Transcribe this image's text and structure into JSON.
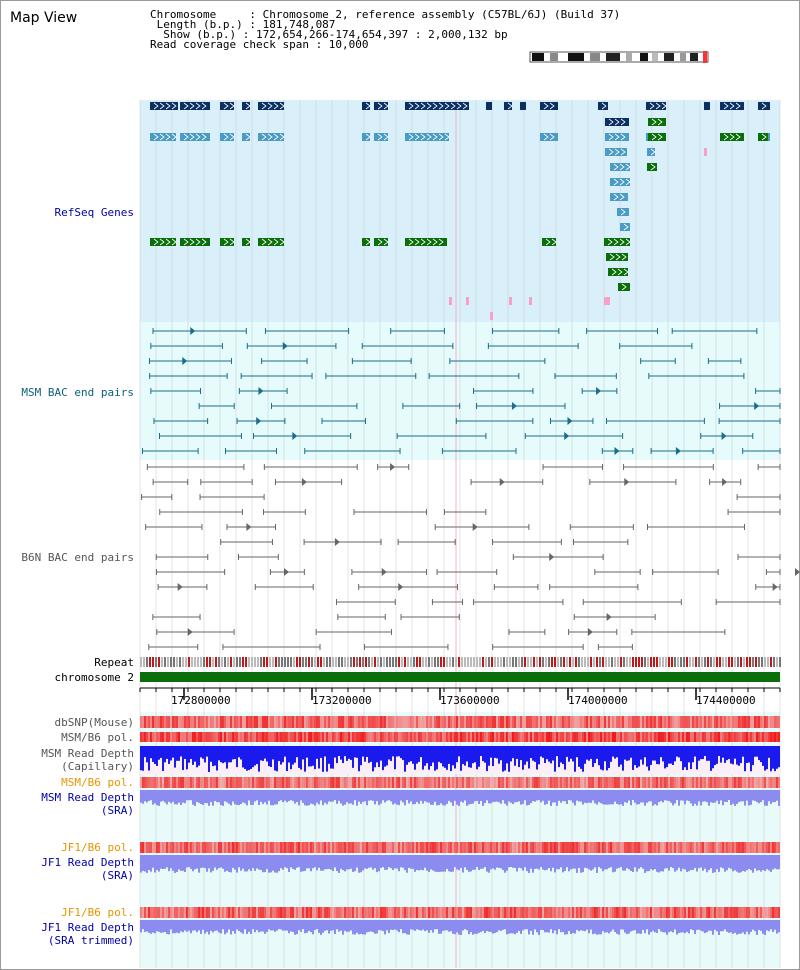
{
  "app": {
    "title": "Map View"
  },
  "info": {
    "chromosome": "Chromosome     : Chromosome 2, reference assembly (C57BL/6J) (Build 37)",
    "length": " Length (b.p.) : 181,748,087",
    "show": "  Show (b.p.) : 172,654,266-174,654,397 : 2,000,132 bp",
    "coverage": "Read coverage check span : 10,000"
  },
  "tracks": {
    "refseq": "RefSeq Genes",
    "msm_bac": "MSM BAC end pairs",
    "b6n_bac": "B6N BAC end pairs",
    "repeat": "Repeat",
    "chromosome": "chromosome 2",
    "dbsnp": "dbSNP(Mouse)",
    "msm_b6_pol_1": "MSM/B6 pol.",
    "msm_read_depth_cap": "MSM Read Depth",
    "capillary": "(Capillary)",
    "msm_b6_pol_2": "MSM/B6 pol.",
    "msm_read_depth_sra": "MSM Read Depth",
    "sra_1": "(SRA)",
    "jf1_b6_pol_1": "JF1/B6 pol.",
    "jf1_read_depth": "JF1 Read Depth",
    "sra_2": "(SRA)",
    "jf1_b6_pol_2": "JF1/B6 pol.",
    "jf1_read_depth_trim": "JF1 Read Depth",
    "sra_trimmed": "(SRA trimmed)"
  },
  "axis": {
    "ticks": [
      "172800000",
      "173200000",
      "173600000",
      "174000000",
      "174400000"
    ]
  },
  "colors": {
    "refseq_bg": "#d9f0fa",
    "msm_bg": "#e6fbfb",
    "lower_bg": "#e9fafa",
    "gene_dark": "#0b2e63",
    "gene_mid": "#4a9cc4",
    "gene_green": "#0a6e0a",
    "chrom_green": "#0a6e0a",
    "depth_blue": "#1a1aee",
    "depth_light": "#8c8cf0"
  }
}
